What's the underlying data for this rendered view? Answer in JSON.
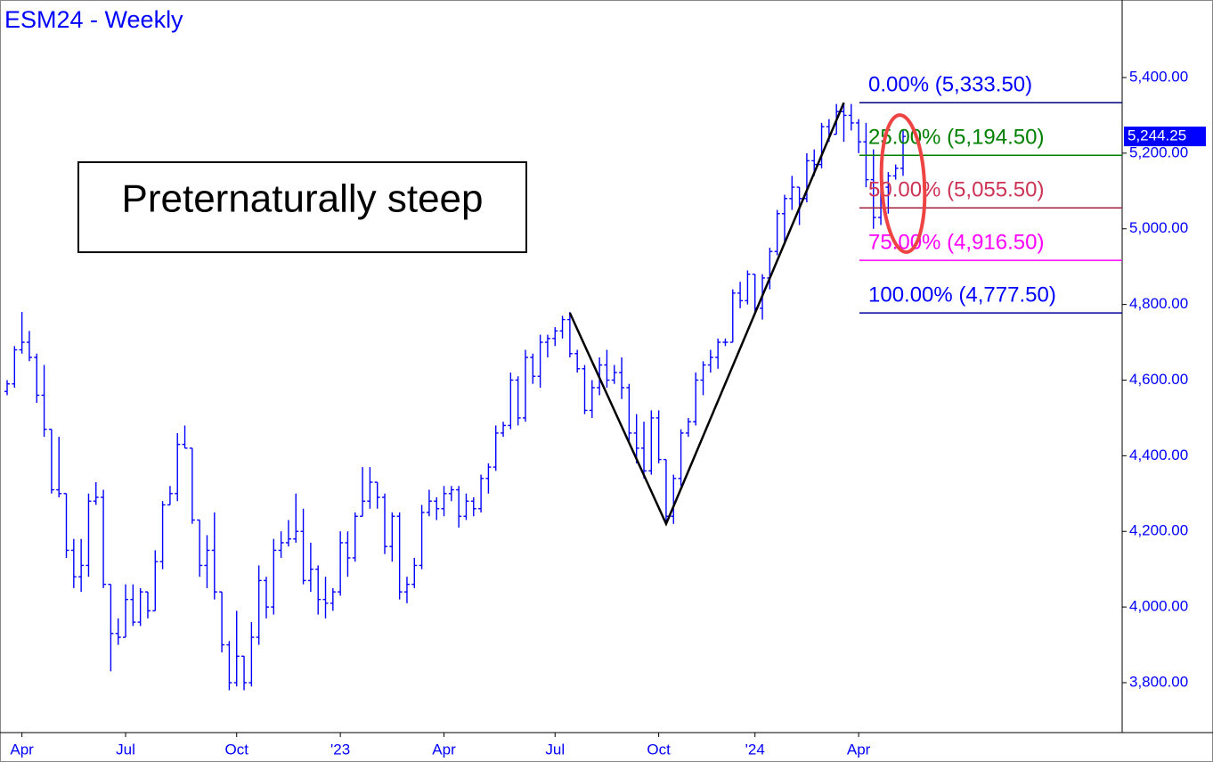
{
  "chart_data": {
    "type": "ohlc",
    "title": "ESM24 - Weekly",
    "annotation": "Preternaturally steep",
    "color": "#0000ff",
    "ylim": [
      3668,
      5605
    ],
    "yticks": [
      {
        "value": 3800,
        "label": "3,800.00"
      },
      {
        "value": 4000,
        "label": "4,000.00"
      },
      {
        "value": 4200,
        "label": "4,200.00"
      },
      {
        "value": 4400,
        "label": "4,400.00"
      },
      {
        "value": 4600,
        "label": "4,600.00"
      },
      {
        "value": 4800,
        "label": "4,800.00"
      },
      {
        "value": 5000,
        "label": "5,000.00"
      },
      {
        "value": 5200,
        "label": "5,200.00"
      },
      {
        "value": 5400,
        "label": "5,400.00"
      }
    ],
    "categories": [
      null,
      null,
      "Apr",
      null,
      null,
      null,
      null,
      null,
      null,
      null,
      null,
      null,
      null,
      null,
      null,
      null,
      "Jul",
      null,
      null,
      null,
      null,
      null,
      null,
      null,
      null,
      null,
      null,
      null,
      null,
      null,
      null,
      "Oct",
      null,
      null,
      null,
      null,
      null,
      null,
      null,
      null,
      null,
      null,
      null,
      null,
      null,
      "'23",
      null,
      null,
      null,
      null,
      null,
      null,
      null,
      null,
      null,
      null,
      null,
      null,
      null,
      "Apr",
      null,
      null,
      null,
      null,
      null,
      null,
      null,
      null,
      null,
      null,
      null,
      null,
      null,
      null,
      "Jul",
      null,
      null,
      null,
      null,
      null,
      null,
      null,
      null,
      null,
      null,
      null,
      null,
      null,
      "Oct",
      null,
      null,
      null,
      null,
      null,
      null,
      null,
      null,
      null,
      null,
      null,
      null,
      "'24",
      null,
      null,
      null,
      null,
      null,
      null,
      null,
      null,
      null,
      null,
      null,
      null,
      null,
      "Apr",
      null,
      null,
      null,
      null,
      null,
      null
    ],
    "open": [
      4570,
      4590,
      4680,
      4700,
      4660,
      4560,
      4470,
      4310,
      4300,
      4150,
      4080,
      4110,
      4280,
      4290,
      4060,
      3930,
      3920,
      4020,
      3960,
      4040,
      3990,
      4120,
      4270,
      4300,
      4430,
      4420,
      4230,
      4110,
      4150,
      4040,
      3900,
      3800,
      3870,
      3800,
      3920,
      4070,
      4000,
      4150,
      4170,
      4180,
      4200,
      4070,
      4100,
      4020,
      4010,
      4040,
      4170,
      4130,
      4240,
      4280,
      4330,
      4290,
      4160,
      4240,
      4040,
      4060,
      4110,
      4250,
      4280,
      4260,
      4300,
      4310,
      4240,
      4280,
      4260,
      4340,
      4370,
      4460,
      4480,
      4600,
      4500,
      4660,
      4610,
      4700,
      4710,
      4730,
      4760,
      4670,
      4630,
      4520,
      4580,
      4640,
      4600,
      4620,
      4580,
      4460,
      4420,
      4360,
      4500,
      4390,
      4240,
      4340,
      4460,
      4490,
      4600,
      4640,
      4660,
      4700,
      4700,
      4830,
      4810,
      4880,
      4790,
      4870,
      4940,
      5040,
      5080,
      5110,
      5080,
      5180,
      5170,
      5270,
      5250,
      5310,
      5300,
      5280,
      5230,
      5130,
      5030,
      5110,
      5140,
      5160
    ],
    "high": [
      4600,
      4690,
      4780,
      4730,
      4670,
      4640,
      4470,
      4450,
      4300,
      4180,
      4180,
      4300,
      4330,
      4310,
      4060,
      3970,
      4060,
      4060,
      4050,
      4040,
      4150,
      4280,
      4320,
      4460,
      4480,
      4420,
      4230,
      4190,
      4250,
      4040,
      3910,
      3990,
      3870,
      3960,
      4110,
      4080,
      4180,
      4200,
      4230,
      4300,
      4260,
      4170,
      4110,
      4080,
      4050,
      4200,
      4200,
      4250,
      4370,
      4370,
      4330,
      4300,
      4250,
      4250,
      4080,
      4130,
      4270,
      4310,
      4290,
      4320,
      4320,
      4320,
      4300,
      4290,
      4350,
      4380,
      4480,
      4490,
      4620,
      4610,
      4680,
      4670,
      4720,
      4720,
      4740,
      4770,
      4780,
      4680,
      4640,
      4600,
      4660,
      4680,
      4640,
      4660,
      4590,
      4510,
      4490,
      4520,
      4520,
      4390,
      4350,
      4470,
      4500,
      4620,
      4650,
      4680,
      4710,
      4710,
      4840,
      4860,
      4890,
      4880,
      4880,
      4950,
      5050,
      5090,
      5140,
      5110,
      5200,
      5210,
      5280,
      5290,
      5330,
      5333.5,
      5330,
      5290,
      5280,
      5210,
      5130,
      5150,
      5170,
      5260
    ],
    "low": [
      4560,
      4580,
      4670,
      4650,
      4540,
      4450,
      4300,
      4290,
      4130,
      4050,
      4040,
      4080,
      4270,
      4050,
      3830,
      3900,
      3920,
      3950,
      3950,
      3970,
      3990,
      4100,
      4270,
      4280,
      4420,
      4220,
      4080,
      4050,
      4020,
      3880,
      3780,
      3790,
      3780,
      3790,
      3900,
      3970,
      3980,
      4130,
      4160,
      4170,
      4060,
      4040,
      3980,
      3970,
      3990,
      4030,
      4080,
      4120,
      4240,
      4260,
      4260,
      4140,
      4120,
      4020,
      4010,
      4050,
      4100,
      4240,
      4230,
      4240,
      4280,
      4210,
      4230,
      4240,
      4250,
      4300,
      4360,
      4450,
      4470,
      4480,
      4490,
      4590,
      4580,
      4660,
      4690,
      4710,
      4660,
      4620,
      4510,
      4500,
      4560,
      4580,
      4590,
      4550,
      4440,
      4380,
      4340,
      4350,
      4380,
      4220,
      4220,
      4320,
      4450,
      4480,
      4560,
      4620,
      4630,
      4690,
      4700,
      4790,
      4800,
      4780,
      4760,
      4840,
      4930,
      4960,
      5050,
      5010,
      5070,
      5140,
      5160,
      5230,
      5250,
      5230,
      5260,
      5200,
      5110,
      5000,
      5010,
      5040,
      5130,
      5140
    ],
    "close": [
      4590,
      4680,
      4700,
      4660,
      4560,
      4470,
      4310,
      4300,
      4150,
      4080,
      4110,
      4280,
      4290,
      4060,
      3930,
      3920,
      4020,
      3960,
      4040,
      3990,
      4120,
      4270,
      4300,
      4430,
      4420,
      4230,
      4110,
      4150,
      4040,
      3900,
      3800,
      3870,
      3800,
      3920,
      4070,
      4000,
      4150,
      4170,
      4180,
      4200,
      4070,
      4100,
      4020,
      4010,
      4040,
      4170,
      4130,
      4240,
      4280,
      4330,
      4290,
      4160,
      4240,
      4040,
      4060,
      4110,
      4250,
      4280,
      4260,
      4300,
      4310,
      4240,
      4280,
      4260,
      4340,
      4370,
      4460,
      4480,
      4600,
      4500,
      4660,
      4610,
      4700,
      4710,
      4730,
      4760,
      4670,
      4630,
      4520,
      4580,
      4640,
      4600,
      4620,
      4580,
      4460,
      4420,
      4360,
      4500,
      4390,
      4240,
      4340,
      4460,
      4490,
      4600,
      4640,
      4660,
      4700,
      4700,
      4830,
      4810,
      4880,
      4790,
      4870,
      4940,
      5040,
      5080,
      5110,
      5080,
      5180,
      5170,
      5270,
      5250,
      5310,
      5300,
      5280,
      5230,
      5130,
      5030,
      5110,
      5140,
      5160,
      5244.25
    ],
    "last_price": {
      "value": 5244.25,
      "label": "5,244.25"
    },
    "pivot_bars": [
      76,
      89,
      113
    ],
    "pivot_values": [
      4777.5,
      4220,
      5333.5
    ],
    "fib_levels": [
      {
        "label": "0.00% (5,333.50)",
        "value": 5333.5,
        "color": "#0000ff",
        "line_color": "#000080"
      },
      {
        "label": "25.00% (5,194.50)",
        "value": 5194.5,
        "color": "#008000",
        "line_color": "#008000"
      },
      {
        "label": "50.00% (5,055.50)",
        "value": 5055.5,
        "color": "#cc3355",
        "line_color": "#a02040"
      },
      {
        "label": "75.00% (4,916.50)",
        "value": 4916.5,
        "color": "#ff00ff",
        "line_color": "#ff00ff"
      },
      {
        "label": "100.00% (4,777.50)",
        "value": 4777.5,
        "color": "#0000ff",
        "line_color": "#0000a0"
      }
    ]
  }
}
